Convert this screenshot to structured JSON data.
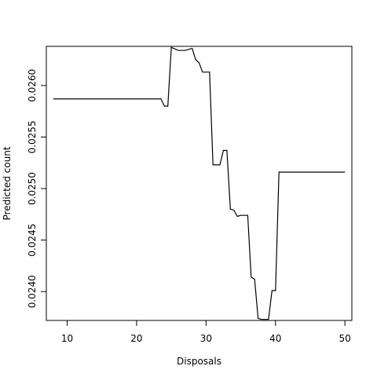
{
  "chart_data": {
    "type": "line",
    "title": "",
    "xlabel": "Disposals",
    "ylabel": "Predicted count",
    "xlim": [
      7,
      51
    ],
    "ylim": [
      0.02372,
      0.02638
    ],
    "x_ticks": [
      10,
      20,
      30,
      40,
      50
    ],
    "x_tick_labels": [
      "10",
      "20",
      "30",
      "40",
      "50"
    ],
    "y_ticks": [
      0.024,
      0.0245,
      0.025,
      0.0255,
      0.026
    ],
    "y_tick_labels": [
      "0.0240",
      "0.0245",
      "0.0250",
      "0.0255",
      "0.0260"
    ],
    "grid": false,
    "series": [
      {
        "x": [
          8,
          23.5,
          24,
          24.5,
          25,
          26,
          27,
          28,
          28.5,
          29,
          29.5,
          30,
          30.5,
          31,
          32,
          32.5,
          33,
          33.5,
          34,
          34.5,
          35,
          36,
          36.5,
          37,
          37.5,
          38,
          39,
          39.5,
          40,
          40.5,
          41,
          50
        ],
        "y": [
          0.02587,
          0.02587,
          0.0258,
          0.0258,
          0.02637,
          0.02634,
          0.02634,
          0.02636,
          0.02625,
          0.02622,
          0.02613,
          0.02613,
          0.02613,
          0.02523,
          0.02523,
          0.02537,
          0.02537,
          0.0248,
          0.02479,
          0.02473,
          0.02474,
          0.02474,
          0.02414,
          0.02412,
          0.02374,
          0.02373,
          0.02373,
          0.02401,
          0.02401,
          0.02516,
          0.02516,
          0.02516
        ]
      }
    ]
  }
}
